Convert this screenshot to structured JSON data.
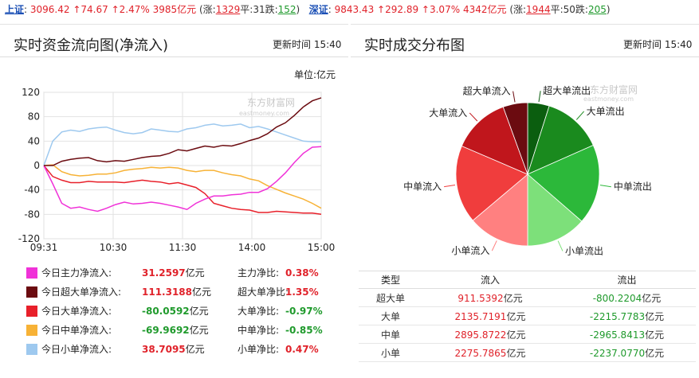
{
  "ticker": {
    "sh_name": "上证",
    "sh_index": "3096.42",
    "sh_change": "74.67",
    "sh_pct": "2.47%",
    "sh_amount": "3985亿元",
    "sh_up_label": "(涨:",
    "sh_up": "1329",
    "sh_flat_label": "平:",
    "sh_flat": "31",
    "sh_down_label": "跌:",
    "sh_down": "152",
    "sh_close": ")",
    "sz_name": "深证",
    "sz_index": "9843.43",
    "sz_change": "292.89",
    "sz_pct": "3.07%",
    "sz_amount": "4342亿元",
    "sz_up_label": "(涨:",
    "sz_up": "1944",
    "sz_flat_label": "平:",
    "sz_flat": "50",
    "sz_down_label": "跌:",
    "sz_down": "205",
    "sz_close": ")",
    "arrow": "↑"
  },
  "left": {
    "title": "实时资金流向图(净流入)",
    "update_label": "更新时间",
    "update_time": "15:40",
    "unit": "单位:亿元",
    "watermark": "东方财富网",
    "watermark_sub": "eastmoney.com"
  },
  "right": {
    "title": "实时成交分布图",
    "update_label": "更新时间",
    "update_time": "15:40",
    "watermark": "东方财富网",
    "watermark_sub": "eastmoney.com"
  },
  "legend": [
    {
      "name": "今日主力净流入:",
      "value": "31.2597",
      "unit": "亿元",
      "ratio_name": "主力净比:",
      "ratio": "0.38%",
      "color": "#f032d8",
      "value_color": "#e0222a"
    },
    {
      "name": "今日超大单净流入:",
      "value": "111.3188",
      "unit": "亿元",
      "ratio_name": "超大单净比:",
      "ratio": "1.35%",
      "color": "#6b0b10",
      "value_color": "#e0222a"
    },
    {
      "name": "今日大单净流入:",
      "value": "-80.0592",
      "unit": "亿元",
      "ratio_name": "大单净比:",
      "ratio": "-0.97%",
      "color": "#e8202a",
      "value_color": "#1f9a2c"
    },
    {
      "name": "今日中单净流入:",
      "value": "-69.9692",
      "unit": "亿元",
      "ratio_name": "中单净比:",
      "ratio": "-0.85%",
      "color": "#f7b236",
      "value_color": "#1f9a2c"
    },
    {
      "name": "今日小单净流入:",
      "value": "38.7095",
      "unit": "亿元",
      "ratio_name": "小单净比:",
      "ratio": "0.47%",
      "color": "#9ec9ef",
      "value_color": "#e0222a"
    }
  ],
  "table": {
    "headers": [
      "类型",
      "流入",
      "流出"
    ],
    "rows": [
      {
        "type": "超大单",
        "in": "911.5392",
        "out": "-800.2204",
        "unit": "亿元"
      },
      {
        "type": "大单",
        "in": "2135.7191",
        "out": "-2215.7783",
        "unit": "亿元"
      },
      {
        "type": "中单",
        "in": "2895.8722",
        "out": "-2965.8413",
        "unit": "亿元"
      },
      {
        "type": "小单",
        "in": "2275.7865",
        "out": "-2237.0770",
        "unit": "亿元"
      }
    ]
  },
  "chart_data": [
    {
      "type": "line",
      "title": "实时资金流向图(净流入)",
      "ylabel": "单位:亿元",
      "ylim": [
        -120,
        120
      ],
      "yticks": [
        120,
        80,
        40,
        0,
        -40,
        -80,
        -120
      ],
      "xticks": [
        "09:31",
        "10:30",
        "11:30",
        "14:00",
        "15:00"
      ],
      "grid": true,
      "series": [
        {
          "name": "今日主力净流入",
          "color": "#f032d8",
          "values": [
            0,
            -30,
            -62,
            -70,
            -68,
            -72,
            -75,
            -70,
            -64,
            -60,
            -63,
            -62,
            -60,
            -62,
            -65,
            -68,
            -72,
            -62,
            -55,
            -50,
            -50,
            -48,
            -47,
            -44,
            -44,
            -38,
            -26,
            -12,
            5,
            20,
            30,
            31
          ]
        },
        {
          "name": "今日超大单净流入",
          "color": "#6b0b10",
          "values": [
            0,
            0,
            7,
            10,
            12,
            13,
            8,
            6,
            8,
            7,
            10,
            13,
            15,
            16,
            20,
            26,
            24,
            28,
            32,
            30,
            33,
            32,
            36,
            41,
            45,
            52,
            63,
            70,
            82,
            96,
            106,
            111
          ]
        },
        {
          "name": "今日大单净流入",
          "color": "#e8202a",
          "values": [
            0,
            -18,
            -24,
            -28,
            -28,
            -26,
            -27,
            -27,
            -27,
            -28,
            -26,
            -24,
            -26,
            -27,
            -30,
            -28,
            -32,
            -36,
            -46,
            -62,
            -66,
            -70,
            -72,
            -73,
            -77,
            -77,
            -75,
            -76,
            -77,
            -78,
            -78,
            -80
          ]
        },
        {
          "name": "今日中单净流入",
          "color": "#f7b236",
          "values": [
            0,
            1,
            -10,
            -15,
            -17,
            -16,
            -14,
            -14,
            -12,
            -8,
            -6,
            -5,
            -3,
            -4,
            -3,
            -4,
            -8,
            -10,
            -8,
            -8,
            -12,
            -15,
            -17,
            -22,
            -25,
            -33,
            -39,
            -45,
            -50,
            -55,
            -62,
            -70
          ]
        },
        {
          "name": "今日小单净流入",
          "color": "#9ec9ef",
          "values": [
            0,
            40,
            55,
            58,
            56,
            60,
            62,
            63,
            58,
            54,
            52,
            54,
            60,
            58,
            56,
            55,
            60,
            62,
            66,
            68,
            65,
            66,
            68,
            62,
            64,
            60,
            55,
            50,
            45,
            40,
            39,
            39
          ]
        }
      ]
    },
    {
      "type": "pie",
      "title": "实时成交分布图",
      "slices": [
        {
          "name": "超大单流出",
          "value": 800.2204,
          "color": "#0b5e0f"
        },
        {
          "name": "大单流出",
          "value": 2215.7783,
          "color": "#1a8a1e"
        },
        {
          "name": "中单流出",
          "value": 2965.8413,
          "color": "#2cb83a"
        },
        {
          "name": "小单流出",
          "value": 2237.077,
          "color": "#7de07a"
        },
        {
          "name": "小单流入",
          "value": 2275.7865,
          "color": "#ff8080"
        },
        {
          "name": "中单流入",
          "value": 2895.8722,
          "color": "#f03d3d"
        },
        {
          "name": "大单流入",
          "value": 2135.7191,
          "color": "#c0161c"
        },
        {
          "name": "超大单流入",
          "value": 911.5392,
          "color": "#6b0b10"
        }
      ]
    }
  ]
}
